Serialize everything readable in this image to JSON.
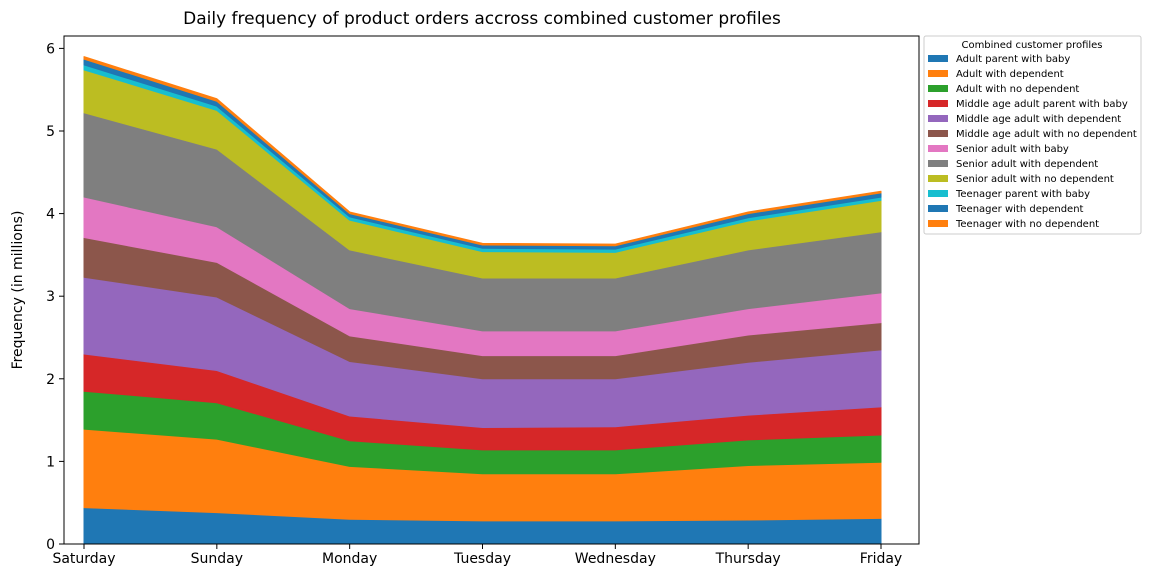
{
  "chart_data": {
    "type": "area",
    "stacked": true,
    "title": "Daily frequency of product orders accross combined customer profiles",
    "xlabel": "",
    "ylabel": "Frequency (in millions)",
    "ylim": [
      0,
      6.15
    ],
    "yticks": [
      0,
      1,
      2,
      3,
      4,
      5,
      6
    ],
    "categories": [
      "Saturday",
      "Sunday",
      "Monday",
      "Tuesday",
      "Wednesday",
      "Thursday",
      "Friday"
    ],
    "grid": false,
    "legend": {
      "title": "Combined customer profiles",
      "placement": "outside-top-right"
    },
    "series": [
      {
        "name": "Adult parent with baby",
        "color": "#1f77b4",
        "values": [
          0.44,
          0.38,
          0.3,
          0.28,
          0.28,
          0.29,
          0.31
        ]
      },
      {
        "name": "Adult with dependent",
        "color": "#ff7f0e",
        "values": [
          0.95,
          0.89,
          0.64,
          0.57,
          0.57,
          0.66,
          0.68
        ]
      },
      {
        "name": "Adult with no dependent",
        "color": "#2ca02c",
        "values": [
          0.46,
          0.44,
          0.31,
          0.29,
          0.29,
          0.31,
          0.33
        ]
      },
      {
        "name": "Middle age adult parent with baby",
        "color": "#d62728",
        "values": [
          0.45,
          0.39,
          0.3,
          0.27,
          0.28,
          0.3,
          0.34
        ]
      },
      {
        "name": "Middle age adult with dependent",
        "color": "#9467bd",
        "values": [
          0.93,
          0.89,
          0.66,
          0.59,
          0.58,
          0.64,
          0.69
        ]
      },
      {
        "name": "Middle age adult with no dependent",
        "color": "#8c564b",
        "values": [
          0.48,
          0.42,
          0.31,
          0.28,
          0.28,
          0.33,
          0.33
        ]
      },
      {
        "name": "Senior adult with baby",
        "color": "#e377c2",
        "values": [
          0.49,
          0.43,
          0.33,
          0.3,
          0.3,
          0.32,
          0.36
        ]
      },
      {
        "name": "Senior adult with dependent",
        "color": "#7f7f7f",
        "values": [
          1.02,
          0.94,
          0.71,
          0.64,
          0.64,
          0.71,
          0.74
        ]
      },
      {
        "name": "Senior adult with no dependent",
        "color": "#bcbd22",
        "values": [
          0.52,
          0.47,
          0.36,
          0.32,
          0.31,
          0.35,
          0.38
        ]
      },
      {
        "name": "Teenager parent with baby",
        "color": "#17becf",
        "values": [
          0.06,
          0.05,
          0.04,
          0.04,
          0.04,
          0.04,
          0.04
        ]
      },
      {
        "name": "Teenager with dependent",
        "color": "#1f77b4",
        "values": [
          0.07,
          0.06,
          0.04,
          0.04,
          0.04,
          0.05,
          0.05
        ]
      },
      {
        "name": "Teenager with no dependent",
        "color": "#ff7f0e",
        "values": [
          0.03,
          0.03,
          0.02,
          0.02,
          0.02,
          0.02,
          0.02
        ]
      }
    ]
  }
}
